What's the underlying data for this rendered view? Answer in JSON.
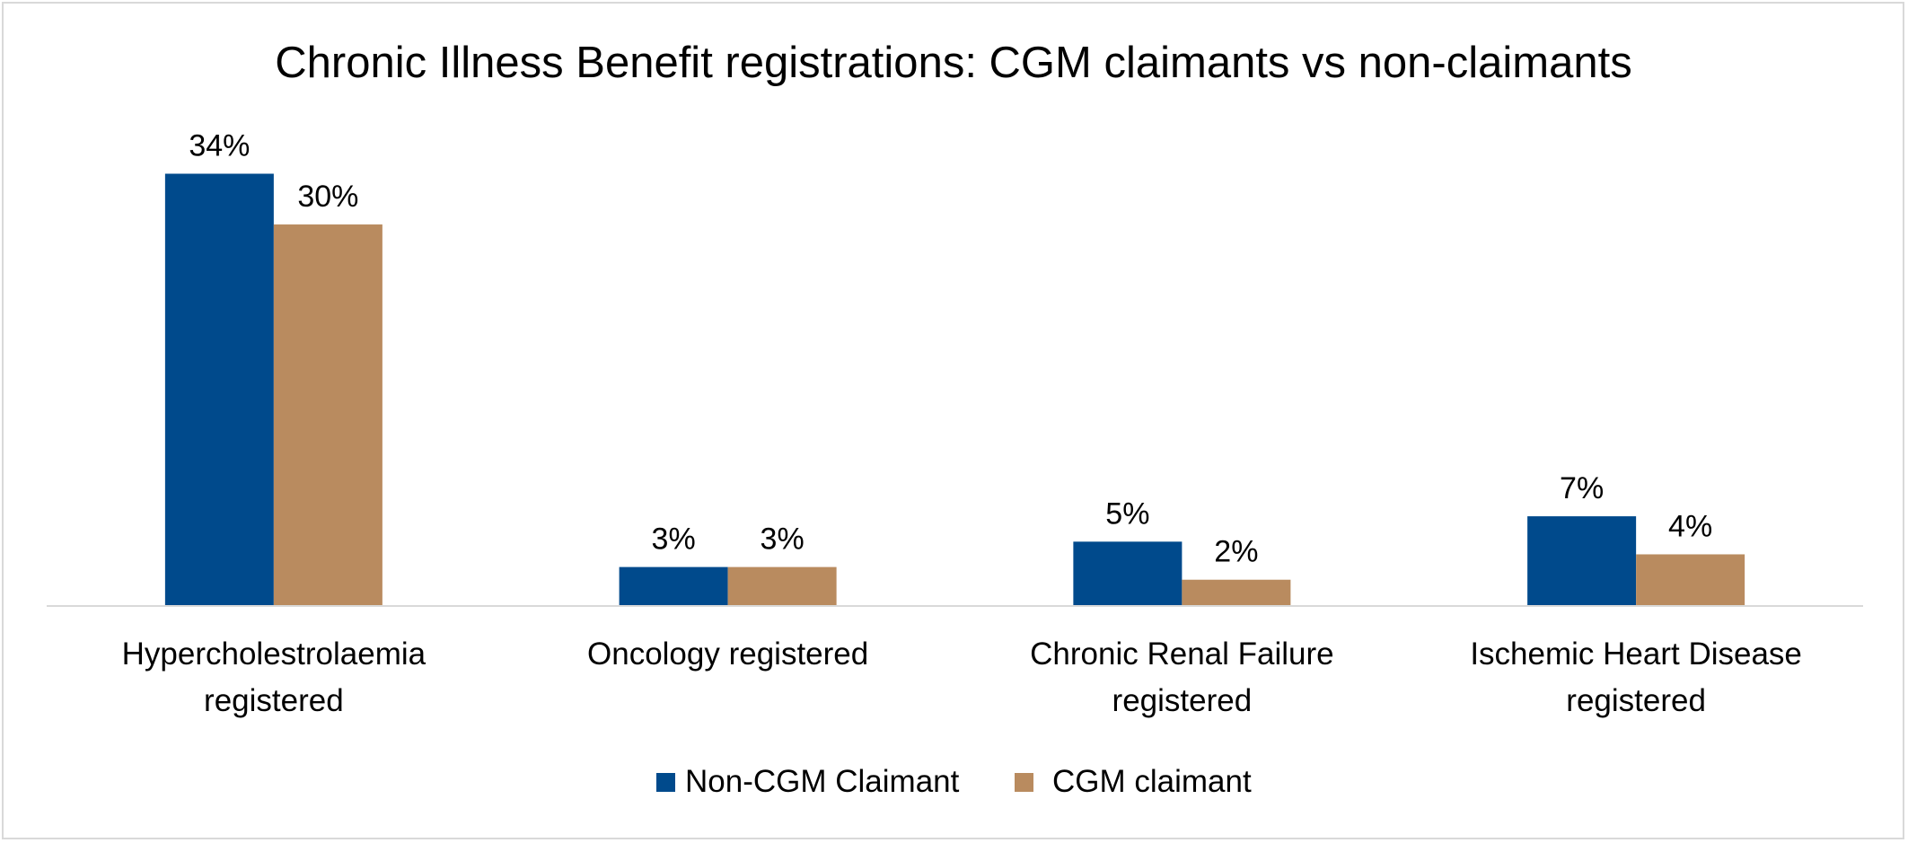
{
  "chart_data": {
    "type": "bar",
    "title": "Chronic Illness Benefit registrations: CGM claimants vs non-claimants",
    "xlabel": "",
    "ylabel": "",
    "categories": [
      [
        "Hypercholestrolaemia",
        "registered"
      ],
      [
        "Oncology registered"
      ],
      [
        "Chronic Renal Failure",
        "registered"
      ],
      [
        "Ischemic Heart Disease",
        "registered"
      ]
    ],
    "series": [
      {
        "name": "Non-CGM Claimant",
        "color": "#004A8C",
        "values": [
          34,
          3,
          5,
          7
        ],
        "labels": [
          "34%",
          "3%",
          "5%",
          "7%"
        ]
      },
      {
        "name": "CGM claimant",
        "color": "#B98B5F",
        "values": [
          30,
          3,
          2,
          4
        ],
        "labels": [
          "30%",
          "3%",
          "2%",
          "4%"
        ]
      }
    ],
    "ylim": [
      0,
      40
    ],
    "value_format": "percent",
    "grid": false,
    "legend_position": "bottom"
  }
}
